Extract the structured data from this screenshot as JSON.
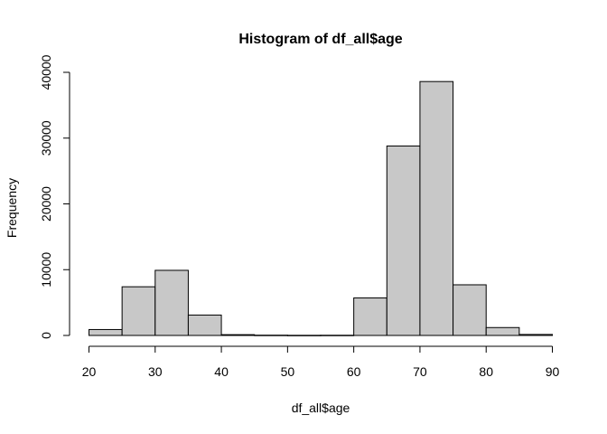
{
  "chart_data": {
    "type": "bar",
    "title": "Histogram of df_all$age",
    "xlabel": "df_all$age",
    "ylabel": "Frequency",
    "bins": [
      {
        "from": 20,
        "to": 25,
        "count": 900
      },
      {
        "from": 25,
        "to": 30,
        "count": 7400
      },
      {
        "from": 30,
        "to": 35,
        "count": 9900
      },
      {
        "from": 35,
        "to": 40,
        "count": 3100
      },
      {
        "from": 40,
        "to": 45,
        "count": 120
      },
      {
        "from": 45,
        "to": 50,
        "count": 40
      },
      {
        "from": 50,
        "to": 55,
        "count": 20
      },
      {
        "from": 55,
        "to": 60,
        "count": 30
      },
      {
        "from": 60,
        "to": 65,
        "count": 5700
      },
      {
        "from": 65,
        "to": 70,
        "count": 28800
      },
      {
        "from": 70,
        "to": 75,
        "count": 38600
      },
      {
        "from": 75,
        "to": 80,
        "count": 7700
      },
      {
        "from": 80,
        "to": 85,
        "count": 1200
      },
      {
        "from": 85,
        "to": 90,
        "count": 150
      }
    ],
    "xlim": [
      20,
      90
    ],
    "ylim": [
      0,
      40000
    ],
    "xticks": [
      "20",
      "30",
      "40",
      "50",
      "60",
      "70",
      "80",
      "90"
    ],
    "yticks": [
      "0",
      "10000",
      "20000",
      "30000",
      "40000"
    ],
    "bar_color": "#c8c8c8",
    "border_color": "#000000",
    "grid": false
  }
}
